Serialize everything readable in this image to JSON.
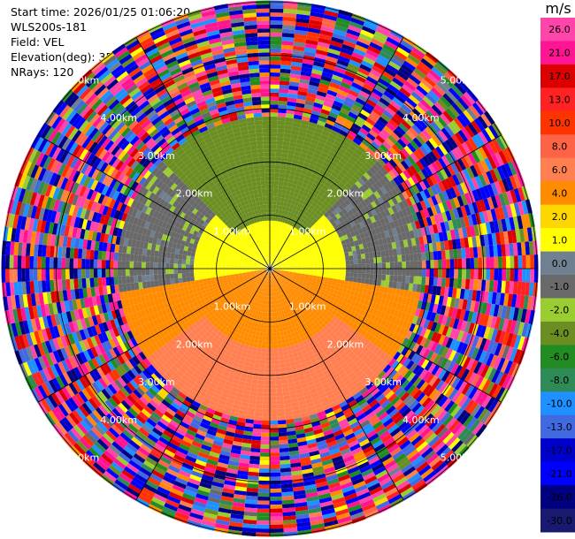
{
  "header": {
    "start_time": "Start time: 2026/01/25 01:06:20",
    "instrument": "WLS200s-181",
    "field": "Field: VEL",
    "elevation": "Elevation(deg): 35.00",
    "nrays": "NRays: 120"
  },
  "colorbar": {
    "unit": "m/s",
    "levels": [
      26.0,
      21.0,
      17.0,
      13.0,
      10.0,
      8.0,
      6.0,
      4.0,
      2.0,
      1.0,
      0.0,
      -1.0,
      -2.0,
      -4.0,
      -6.0,
      -8.0,
      -10.0,
      -13.0,
      -17.0,
      -21.0,
      -26.0,
      -30.0
    ],
    "labels": [
      "26.0",
      "21.0",
      "17.0",
      "13.0",
      "10.0",
      "8.0",
      "6.0",
      "4.0",
      "2.0",
      "1.0",
      "0.0",
      "-1.0",
      "-2.0",
      "-4.0",
      "-6.0",
      "-8.0",
      "-10.0",
      "-13.0",
      "-17.0",
      "-21.0",
      "-26.0",
      "-30.0"
    ],
    "colors": [
      "#ff44aa",
      "#ff1493",
      "#dd0000",
      "#ff2222",
      "#ff3300",
      "#ff6347",
      "#ff7f50",
      "#ff8c00",
      "#ffd700",
      "#ffff00",
      "#708090",
      "#696969",
      "#9acd32",
      "#6b8e23",
      "#228b22",
      "#2e8b57",
      "#1e90ff",
      "#4169e1",
      "#0000cd",
      "#0000ff",
      "#000080",
      "#191970"
    ]
  },
  "chart_data": {
    "type": "polar-ppi",
    "field": "VEL",
    "unit": "m/s",
    "range_rings_km": [
      1.0,
      2.0,
      3.0,
      4.0,
      5.0
    ],
    "ring_labels": [
      "1.00km",
      "2.00km",
      "3.00km",
      "4.00km",
      "5.00km"
    ],
    "rays": 120,
    "coherent_region": {
      "max_range_km": 2.9,
      "north_sector_deg": [
        315,
        45
      ],
      "north_velocity_ms": -5.0,
      "east_west_velocity_ms": 0.5,
      "south_sector_deg": [
        100,
        260
      ],
      "south_velocity_ms": 3.0,
      "south_outer_velocity_ms": 5.0,
      "flank_velocity_ms": -1.5
    },
    "noise_beyond_km": 2.9,
    "noise_velocity_range_ms": [
      -30.0,
      26.0
    ]
  }
}
